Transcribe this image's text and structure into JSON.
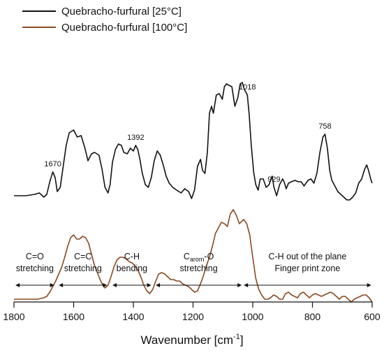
{
  "chart_data": {
    "type": "line",
    "xlabel": "Wavenumber [cm",
    "xlabel_superscript": "-1",
    "xlabel_suffix": "]",
    "ylabel": "",
    "x_reversed": true,
    "xlim": [
      1800,
      600
    ],
    "x_ticks": [
      1800,
      1600,
      1400,
      1200,
      1000,
      800,
      600
    ],
    "y_axis_shown": false,
    "grid": false,
    "legend_position": "top-left",
    "series": [
      {
        "name": "Quebracho-furfural [25°C]",
        "color": "#111111",
        "x": [
          1800,
          1760,
          1730,
          1715,
          1700,
          1690,
          1680,
          1670,
          1662,
          1655,
          1645,
          1635,
          1625,
          1615,
          1600,
          1588,
          1575,
          1562,
          1552,
          1540,
          1530,
          1515,
          1505,
          1495,
          1485,
          1478,
          1470,
          1460,
          1450,
          1440,
          1432,
          1420,
          1410,
          1400,
          1392,
          1385,
          1378,
          1370,
          1360,
          1350,
          1340,
          1330,
          1320,
          1310,
          1300,
          1290,
          1280,
          1268,
          1255,
          1240,
          1228,
          1215,
          1205,
          1195,
          1185,
          1175,
          1168,
          1160,
          1152,
          1145,
          1138,
          1132,
          1122,
          1112,
          1102,
          1095,
          1088,
          1080,
          1070,
          1060,
          1050,
          1042,
          1035,
          1028,
          1018,
          1012,
          1005,
          997,
          990,
          982,
          975,
          965,
          955,
          945,
          935,
          929,
          920,
          910,
          900,
          895,
          888,
          880,
          870,
          858,
          848,
          838,
          828,
          815,
          805,
          795,
          785,
          775,
          765,
          758,
          750,
          742,
          735,
          725,
          715,
          705,
          695,
          685,
          675,
          665,
          655,
          645,
          635,
          625,
          618,
          612,
          605,
          600
        ],
        "y": [
          0.14,
          0.14,
          0.15,
          0.16,
          0.13,
          0.15,
          0.24,
          0.31,
          0.27,
          0.17,
          0.2,
          0.35,
          0.5,
          0.59,
          0.61,
          0.56,
          0.57,
          0.48,
          0.39,
          0.44,
          0.45,
          0.43,
          0.33,
          0.2,
          0.16,
          0.22,
          0.38,
          0.47,
          0.51,
          0.5,
          0.45,
          0.44,
          0.48,
          0.46,
          0.5,
          0.47,
          0.4,
          0.3,
          0.22,
          0.2,
          0.27,
          0.39,
          0.46,
          0.43,
          0.36,
          0.28,
          0.23,
          0.2,
          0.18,
          0.16,
          0.19,
          0.17,
          0.12,
          0.18,
          0.35,
          0.4,
          0.32,
          0.3,
          0.45,
          0.73,
          0.78,
          0.73,
          0.86,
          0.87,
          0.83,
          0.92,
          0.94,
          0.93,
          0.92,
          0.78,
          0.84,
          0.94,
          0.95,
          0.9,
          0.86,
          0.72,
          0.5,
          0.31,
          0.22,
          0.18,
          0.26,
          0.26,
          0.2,
          0.22,
          0.28,
          0.2,
          0.14,
          0.22,
          0.26,
          0.24,
          0.19,
          0.23,
          0.24,
          0.25,
          0.24,
          0.24,
          0.21,
          0.25,
          0.26,
          0.23,
          0.3,
          0.45,
          0.56,
          0.58,
          0.48,
          0.32,
          0.25,
          0.21,
          0.17,
          0.15,
          0.13,
          0.11,
          0.11,
          0.13,
          0.16,
          0.23,
          0.26,
          0.33,
          0.36,
          0.32,
          0.26,
          0.23
        ]
      },
      {
        "name": "Quebracho-furfural [100°C]",
        "color": "#8a4a21",
        "x": [
          1800,
          1750,
          1720,
          1700,
          1690,
          1680,
          1670,
          1660,
          1650,
          1640,
          1630,
          1620,
          1610,
          1600,
          1590,
          1580,
          1570,
          1560,
          1550,
          1540,
          1530,
          1515,
          1505,
          1495,
          1485,
          1475,
          1465,
          1455,
          1445,
          1435,
          1425,
          1415,
          1405,
          1395,
          1385,
          1375,
          1365,
          1355,
          1345,
          1335,
          1325,
          1315,
          1305,
          1295,
          1285,
          1275,
          1265,
          1255,
          1245,
          1235,
          1225,
          1215,
          1205,
          1195,
          1185,
          1175,
          1165,
          1155,
          1145,
          1135,
          1125,
          1115,
          1105,
          1095,
          1085,
          1075,
          1065,
          1055,
          1045,
          1040,
          1030,
          1020,
          1010,
          1000,
          990,
          980,
          970,
          960,
          950,
          940,
          930,
          920,
          910,
          900,
          890,
          880,
          870,
          860,
          850,
          840,
          830,
          820,
          810,
          800,
          790,
          780,
          770,
          760,
          750,
          740,
          730,
          720,
          710,
          700,
          690,
          680,
          670,
          660,
          650,
          640,
          630,
          620,
          610,
          600
        ],
        "y": [
          -0.6,
          -0.6,
          -0.6,
          -0.59,
          -0.58,
          -0.55,
          -0.51,
          -0.47,
          -0.42,
          -0.37,
          -0.3,
          -0.22,
          -0.16,
          -0.14,
          -0.17,
          -0.17,
          -0.15,
          -0.16,
          -0.2,
          -0.28,
          -0.36,
          -0.44,
          -0.49,
          -0.52,
          -0.5,
          -0.44,
          -0.37,
          -0.32,
          -0.3,
          -0.3,
          -0.31,
          -0.33,
          -0.34,
          -0.36,
          -0.39,
          -0.44,
          -0.5,
          -0.54,
          -0.56,
          -0.53,
          -0.47,
          -0.42,
          -0.41,
          -0.42,
          -0.44,
          -0.46,
          -0.46,
          -0.47,
          -0.47,
          -0.49,
          -0.5,
          -0.51,
          -0.53,
          -0.55,
          -0.54,
          -0.49,
          -0.43,
          -0.36,
          -0.3,
          -0.22,
          -0.13,
          -0.09,
          -0.05,
          -0.06,
          -0.08,
          0.01,
          0.04,
          0,
          -0.06,
          -0.05,
          -0.03,
          -0.06,
          -0.14,
          -0.3,
          -0.45,
          -0.53,
          -0.57,
          -0.6,
          -0.6,
          -0.59,
          -0.57,
          -0.58,
          -0.6,
          -0.6,
          -0.56,
          -0.55,
          -0.57,
          -0.58,
          -0.59,
          -0.56,
          -0.55,
          -0.57,
          -0.59,
          -0.57,
          -0.56,
          -0.57,
          -0.58,
          -0.57,
          -0.56,
          -0.55,
          -0.56,
          -0.58,
          -0.6,
          -0.58,
          -0.58,
          -0.6,
          -0.62,
          -0.6,
          -0.59,
          -0.58,
          -0.57,
          -0.57,
          -0.59,
          -0.62
        ]
      }
    ],
    "peak_labels": [
      {
        "x": 1670,
        "text": "1670"
      },
      {
        "x": 1392,
        "text": "1392"
      },
      {
        "x": 1018,
        "text": "1018"
      },
      {
        "x": 929,
        "text": "929"
      },
      {
        "x": 758,
        "text": "758"
      }
    ],
    "regions": [
      {
        "from": 1795,
        "to": 1665,
        "line1": "C=O",
        "line2": "stretching"
      },
      {
        "from": 1650,
        "to": 1488,
        "line1": "C=C",
        "line2": "stretching"
      },
      {
        "from": 1470,
        "to": 1340,
        "line1": "C-H",
        "line2": "bending"
      },
      {
        "from": 1325,
        "to": 1037,
        "line1_main": "C",
        "line1_sub": "arom",
        "line1_rest": "-O",
        "line2": "stretching"
      },
      {
        "from": 1030,
        "to": 603,
        "line1": "C-H out of the plane",
        "line2": "Finger print zone"
      }
    ]
  }
}
